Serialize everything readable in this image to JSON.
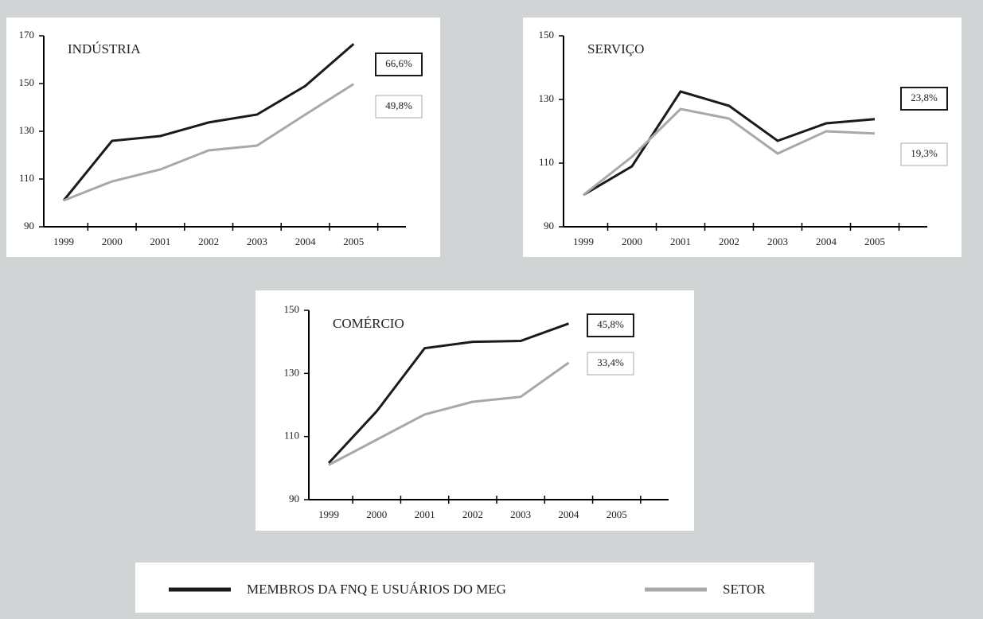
{
  "chart_data": [
    {
      "type": "line",
      "title": "INDÚSTRIA",
      "categories": [
        "1999",
        "2000",
        "2001",
        "2002",
        "2003",
        "2004",
        "2005"
      ],
      "series": [
        {
          "values": [
            101,
            126,
            128,
            133.7,
            137,
            149,
            166.6
          ],
          "label": "66,6%"
        },
        {
          "values": [
            101,
            109,
            114,
            122,
            124,
            137,
            149.8
          ],
          "label": "49,8%"
        }
      ],
      "ylim": [
        90,
        170
      ],
      "yticks": [
        90,
        110,
        130,
        150,
        170
      ]
    },
    {
      "type": "line",
      "title": "SERVIÇO",
      "categories": [
        "1999",
        "2000",
        "2001",
        "2002",
        "2003",
        "2004",
        "2005"
      ],
      "series": [
        {
          "values": [
            100,
            109,
            132.5,
            128,
            117,
            122.5,
            123.8
          ],
          "label": "23,8%"
        },
        {
          "values": [
            100,
            112,
            127,
            124,
            113,
            120,
            119.3
          ],
          "label": "19,3%"
        }
      ],
      "ylim": [
        90,
        150
      ],
      "yticks": [
        90,
        110,
        130,
        150
      ]
    },
    {
      "type": "line",
      "title": "COMÉRCIO",
      "categories": [
        "1999",
        "2000",
        "2001",
        "2002",
        "2003",
        "2004",
        "2005"
      ],
      "series": [
        {
          "values": [
            101.6,
            118,
            138,
            140,
            140.3,
            145.8,
            null
          ],
          "label": "45,8%"
        },
        {
          "values": [
            101,
            109,
            117,
            121,
            122.6,
            133.4,
            null
          ],
          "label": "33,4%"
        }
      ],
      "ylim": [
        90,
        150
      ],
      "yticks": [
        90,
        110,
        130,
        150
      ]
    }
  ],
  "legend": {
    "series": [
      {
        "name": "MEMBROS DA FNQ E USUÁRIOS DO MEG",
        "color": "#1a1a1a"
      },
      {
        "name": "SETOR",
        "color": "#a8a8a8"
      }
    ]
  }
}
